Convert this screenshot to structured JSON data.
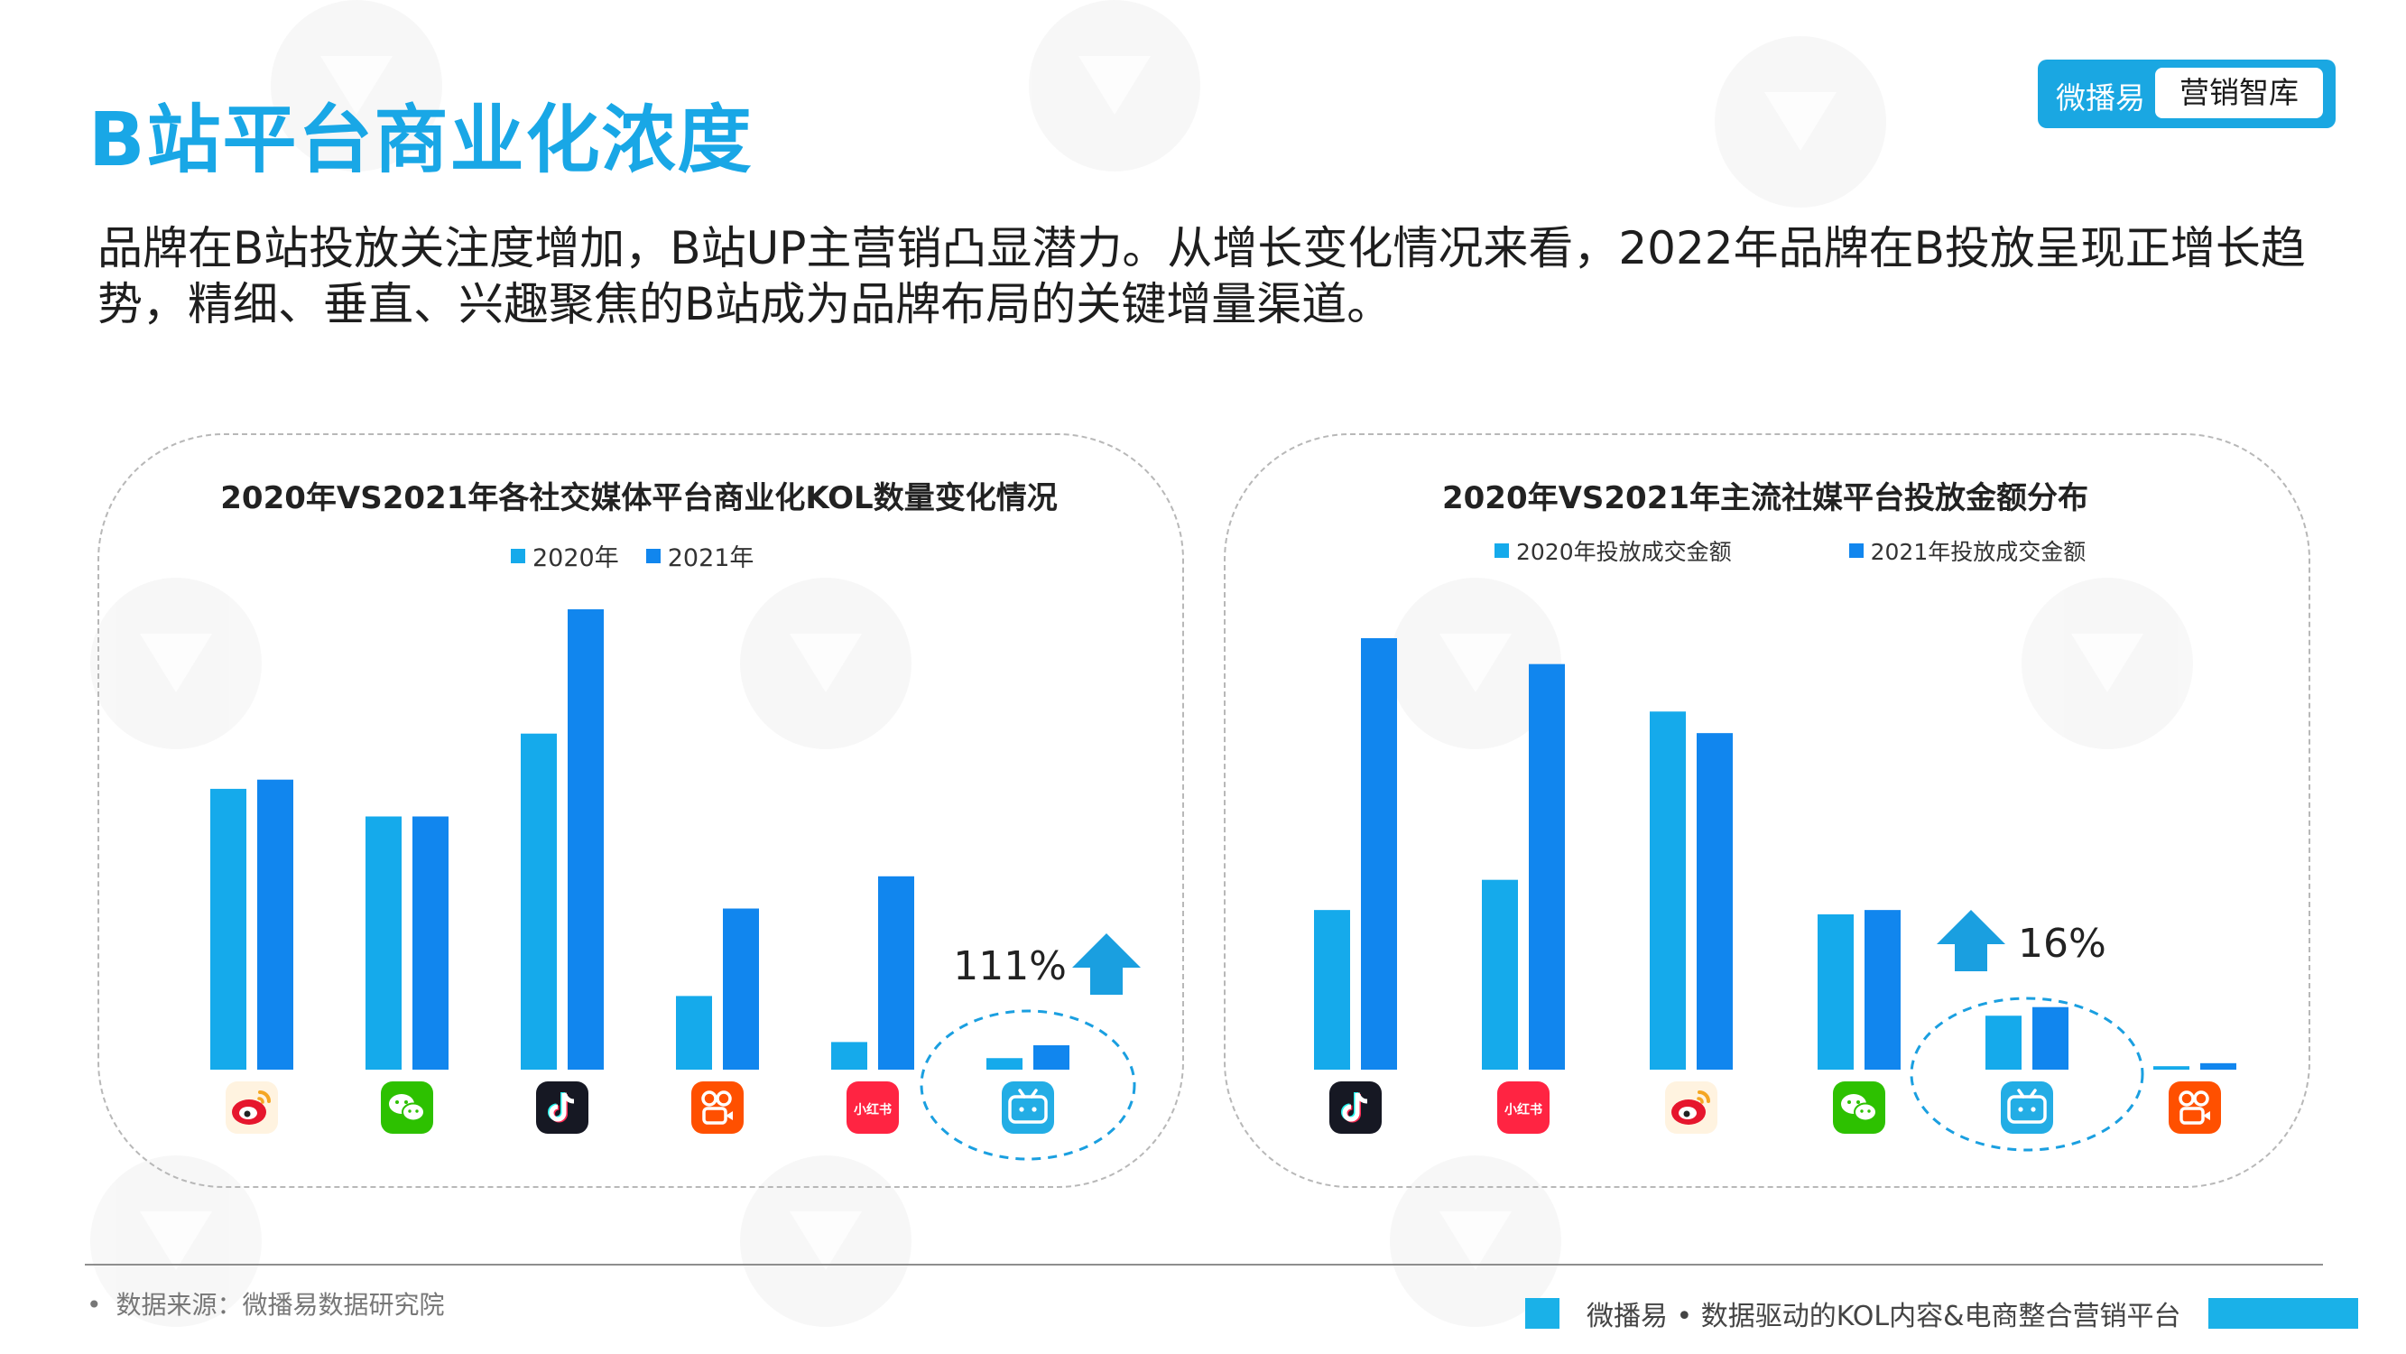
{
  "title": "B站平台商业化浓度",
  "description": "品牌在B站投放关注度增加，B站UP主营销凸显潜力。从增长变化情况来看，2022年品牌在B投放呈现正增长趋势，精细、垂直、兴趣聚焦的B站成为品牌布局的关键增量渠道。",
  "badge": {
    "brand": "微播易",
    "label": "营销智库"
  },
  "watermark": "微播易",
  "colors": {
    "accent": "#19a7e6",
    "series_2020": "#15aaeb",
    "series_2021": "#1186ee"
  },
  "chart_data": [
    {
      "type": "bar",
      "title": "2020年VS2021年各社交媒体平台商业化KOL数量变化情况",
      "categories": [
        "weibo-icon",
        "wechat-icon",
        "douyin-icon",
        "kuaishou-icon",
        "xiaohongshu-icon",
        "bilibili-icon"
      ],
      "series": [
        {
          "name": "2020年",
          "values": [
            61,
            55,
            73,
            16,
            6,
            2.5
          ]
        },
        {
          "name": "2021年",
          "values": [
            63,
            55,
            100,
            35,
            42,
            5.3
          ]
        }
      ],
      "ylim": [
        0,
        100
      ],
      "annotation": {
        "text": "111%",
        "category": "bilibili-icon",
        "arrow": "up"
      },
      "legend_position": "top-center"
    },
    {
      "type": "bar",
      "title": "2020年VS2021年主流社媒平台投放金额分布",
      "categories": [
        "douyin-icon",
        "xiaohongshu-icon",
        "weibo-icon",
        "wechat-icon",
        "bilibili-icon",
        "kuaishou-icon"
      ],
      "series": [
        {
          "name": "2020年投放成交金额",
          "values": [
            37,
            44,
            83,
            36,
            12.5,
            0.8
          ]
        },
        {
          "name": "2021年投放成交金额",
          "values": [
            100,
            94,
            78,
            37,
            14.5,
            1.5
          ]
        }
      ],
      "ylim": [
        0,
        100
      ],
      "annotation": {
        "text": "16%",
        "category": "bilibili-icon",
        "arrow": "up"
      },
      "legend_position": "top-center"
    }
  ],
  "footer": {
    "source": "数据来源：微播易数据研究院",
    "tagline": "微播易 • 数据驱动的KOL内容&电商整合营销平台"
  }
}
